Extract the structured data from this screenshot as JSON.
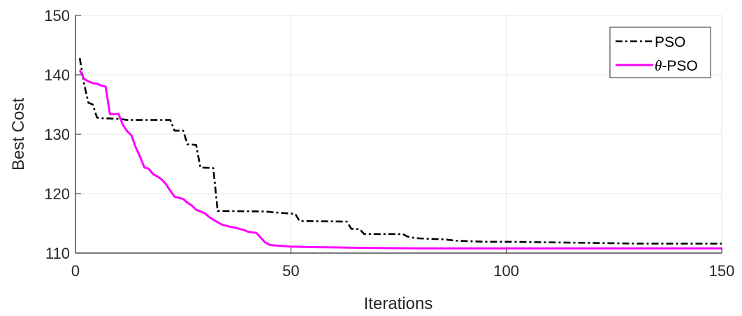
{
  "chart_data": {
    "type": "line",
    "title": "",
    "xlabel": "Iterations",
    "ylabel": "Best Cost",
    "xlim": [
      0,
      150
    ],
    "ylim": [
      110,
      150
    ],
    "xticks": [
      0,
      50,
      100,
      150
    ],
    "yticks": [
      110,
      120,
      130,
      140,
      150
    ],
    "xtick_labels": [
      "0",
      "50",
      "100",
      "150"
    ],
    "ytick_labels": [
      "110",
      "120",
      "130",
      "140",
      "150"
    ],
    "grid": true,
    "legend_position": "top-right",
    "series": [
      {
        "name": "PSO",
        "legend_symbol": "",
        "legend_suffix": "PSO",
        "color": "#000000",
        "line_style": "dash-dot",
        "points": [
          [
            1,
            142.8
          ],
          [
            2,
            138.5
          ],
          [
            3,
            135.3
          ],
          [
            4,
            135.0
          ],
          [
            5,
            132.8
          ],
          [
            6,
            132.7
          ],
          [
            10,
            132.6
          ],
          [
            12,
            132.4
          ],
          [
            22,
            132.4
          ],
          [
            23,
            130.6
          ],
          [
            25,
            130.6
          ],
          [
            26,
            128.3
          ],
          [
            28,
            128.2
          ],
          [
            29,
            124.4
          ],
          [
            32,
            124.3
          ],
          [
            33,
            117.1
          ],
          [
            44,
            117.0
          ],
          [
            47,
            116.8
          ],
          [
            51,
            116.6
          ],
          [
            52,
            115.4
          ],
          [
            63,
            115.3
          ],
          [
            64,
            114.1
          ],
          [
            66,
            114.0
          ],
          [
            67,
            113.2
          ],
          [
            76,
            113.2
          ],
          [
            77,
            112.8
          ],
          [
            79,
            112.5
          ],
          [
            86,
            112.3
          ],
          [
            88,
            112.1
          ],
          [
            95,
            111.9
          ],
          [
            100,
            111.9
          ],
          [
            110,
            111.8
          ],
          [
            120,
            111.7
          ],
          [
            130,
            111.6
          ],
          [
            140,
            111.6
          ],
          [
            150,
            111.6
          ]
        ]
      },
      {
        "name": "θ-PSO",
        "legend_symbol": "θ",
        "legend_suffix": "-PSO",
        "color": "#ff00ff",
        "line_style": "solid",
        "points": [
          [
            1,
            140.8
          ],
          [
            2,
            139.3
          ],
          [
            3,
            138.9
          ],
          [
            4,
            138.6
          ],
          [
            5,
            138.5
          ],
          [
            6,
            138.2
          ],
          [
            7,
            138.0
          ],
          [
            8,
            133.4
          ],
          [
            9,
            133.4
          ],
          [
            10,
            133.4
          ],
          [
            11,
            131.6
          ],
          [
            12,
            130.5
          ],
          [
            13,
            129.8
          ],
          [
            14,
            127.8
          ],
          [
            15,
            126.2
          ],
          [
            16,
            124.4
          ],
          [
            17,
            124.2
          ],
          [
            18,
            123.3
          ],
          [
            19,
            122.9
          ],
          [
            20,
            122.4
          ],
          [
            21,
            121.6
          ],
          [
            22,
            120.5
          ],
          [
            23,
            119.5
          ],
          [
            24,
            119.3
          ],
          [
            25,
            119.1
          ],
          [
            26,
            118.5
          ],
          [
            27,
            118.0
          ],
          [
            28,
            117.3
          ],
          [
            29,
            117.0
          ],
          [
            30,
            116.7
          ],
          [
            31,
            116.1
          ],
          [
            32,
            115.6
          ],
          [
            33,
            115.2
          ],
          [
            34,
            114.8
          ],
          [
            35,
            114.6
          ],
          [
            36,
            114.4
          ],
          [
            37,
            114.3
          ],
          [
            38,
            114.1
          ],
          [
            39,
            113.9
          ],
          [
            40,
            113.6
          ],
          [
            41,
            113.5
          ],
          [
            42,
            113.4
          ],
          [
            43,
            112.6
          ],
          [
            44,
            111.8
          ],
          [
            45,
            111.4
          ],
          [
            46,
            111.3
          ],
          [
            48,
            111.2
          ],
          [
            50,
            111.1
          ],
          [
            55,
            111.0
          ],
          [
            60,
            110.95
          ],
          [
            70,
            110.85
          ],
          [
            80,
            110.8
          ],
          [
            100,
            110.8
          ],
          [
            120,
            110.8
          ],
          [
            150,
            110.8
          ]
        ]
      }
    ]
  }
}
